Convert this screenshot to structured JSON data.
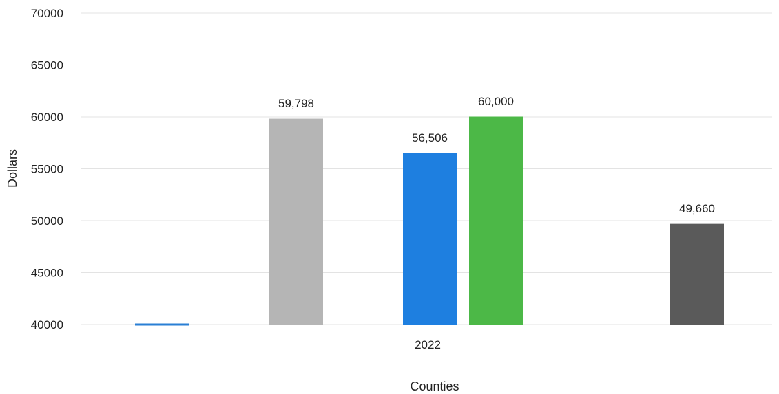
{
  "chart_data": {
    "type": "bar",
    "categories": [
      "2022"
    ],
    "series": [
      {
        "values": [
          40000
        ],
        "color": "#2a7fd4",
        "value_label": ""
      },
      {
        "values": [
          59798
        ],
        "color": "#b5b5b5",
        "value_label": "59,798"
      },
      {
        "values": [
          56506
        ],
        "color": "#1e7fe0",
        "value_label": "56,506"
      },
      {
        "values": [
          60000
        ],
        "color": "#4cb847",
        "value_label": "60,000"
      },
      {
        "values": [
          49660
        ],
        "color": "#5a5a5a",
        "value_label": "49,660"
      }
    ],
    "xlabel": "Counties",
    "ylabel": "Dollars",
    "ylim": [
      40000,
      70000
    ],
    "yticks": [
      "40000",
      "45000",
      "50000",
      "55000",
      "60000",
      "65000",
      "70000"
    ],
    "grid": true,
    "legend": "none"
  }
}
